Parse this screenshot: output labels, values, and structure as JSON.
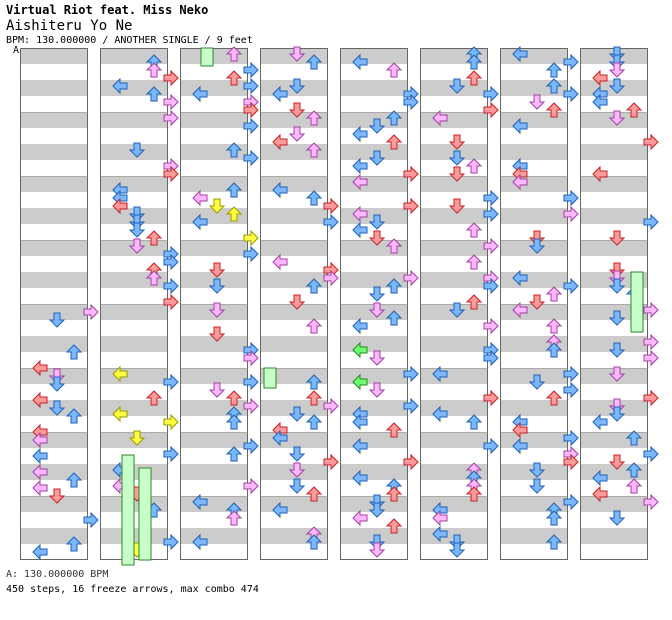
{
  "header": {
    "artist_line": "Virtual Riot feat. Miss Neko",
    "song_title": "Aishiteru Yo Ne",
    "chart_info": "BPM: 130.000000 / ANOTHER SINGLE / 9 feet"
  },
  "chart_marker": "A",
  "footer": {
    "bpm_line": "A: 130.000000 BPM",
    "stats_line": "450 steps, 16 freeze arrows, max combo 474"
  },
  "colors": {
    "stripe": "#cccccc",
    "red_note": "#ff9a9a",
    "red_stroke": "#c22222",
    "blue_note": "#7ab8ff",
    "blue_stroke": "#1f5fb5",
    "pink_note": "#ffb8ff",
    "pink_stroke": "#a040a0",
    "yellow_note": "#ffff40",
    "yellow_stroke": "#9a9a00",
    "green_note": "#70ff70",
    "green_stroke": "#1a8a1a",
    "freeze_fill": "#c8ffc8",
    "freeze_stroke": "#2a8a2a"
  },
  "icons": [
    "left-arrow-icon",
    "down-arrow-icon",
    "up-arrow-icon",
    "right-arrow-icon"
  ]
}
